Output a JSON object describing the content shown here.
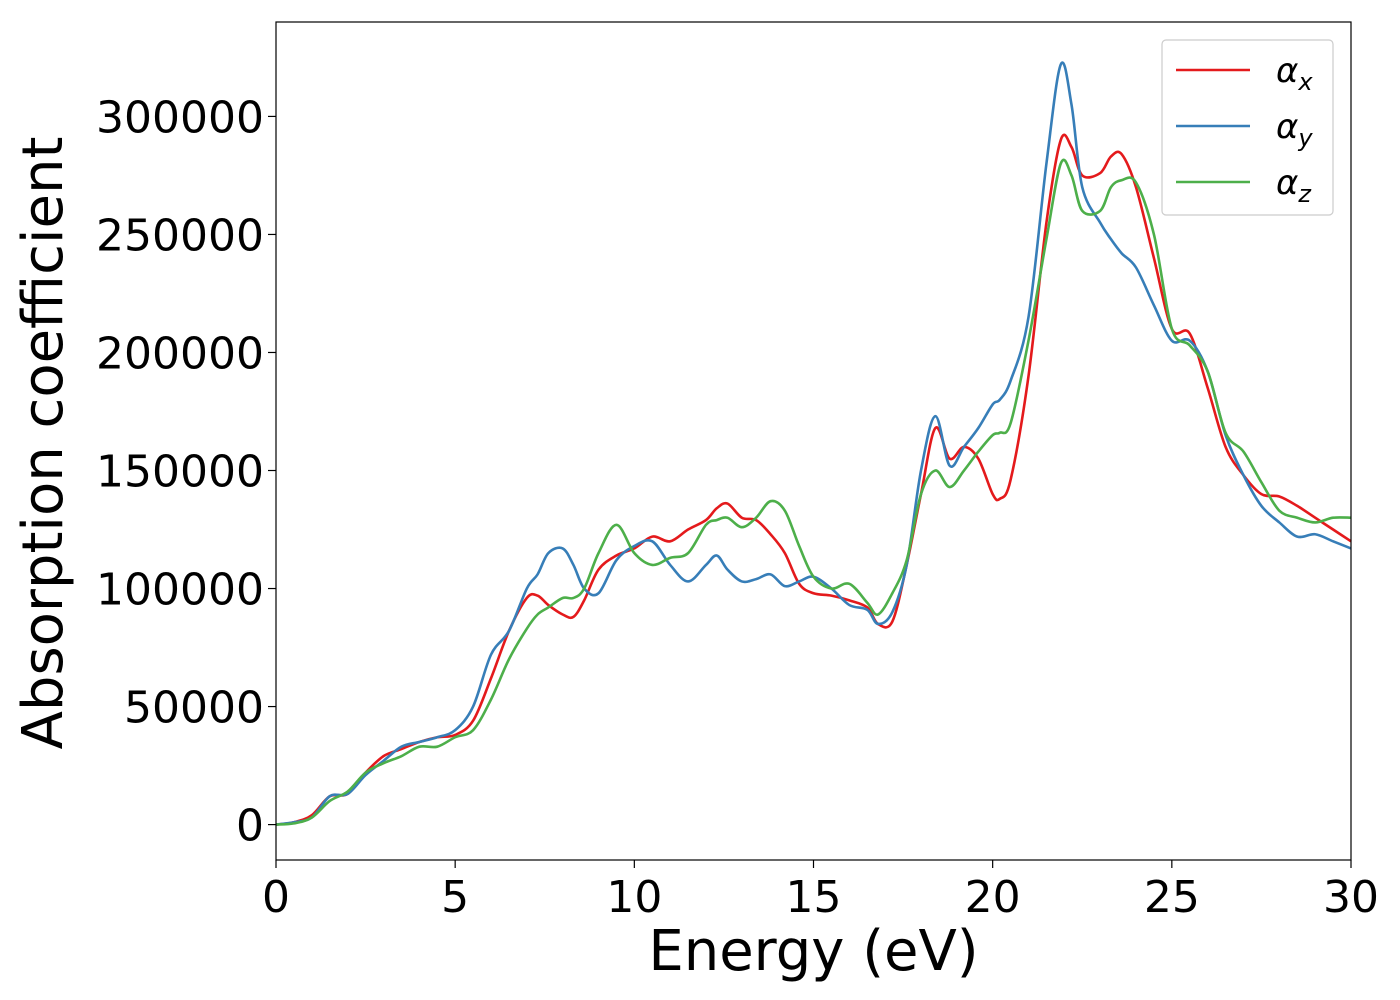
{
  "chart_data": {
    "type": "line",
    "xlabel": "Energy (eV)",
    "ylabel": "Absorption coefficient",
    "xlim": [
      0,
      30
    ],
    "ylim": [
      -15000,
      340000
    ],
    "xticks": [
      0,
      5,
      10,
      15,
      20,
      25,
      30
    ],
    "xtick_labels": [
      "0",
      "5",
      "10",
      "15",
      "20",
      "25",
      "30"
    ],
    "yticks": [
      0,
      50000,
      100000,
      150000,
      200000,
      250000,
      300000
    ],
    "ytick_labels": [
      "0",
      "50000",
      "100000",
      "150000",
      "200000",
      "250000",
      "300000"
    ],
    "grid": false,
    "legend_position": "top-right",
    "series": [
      {
        "name": "α_x",
        "legend_symbol": "α",
        "legend_sub": "x",
        "color": "#e41a1c",
        "x": [
          0,
          0.5,
          1,
          1.5,
          2,
          2.5,
          3,
          3.5,
          4,
          4.5,
          5,
          5.5,
          6,
          6.5,
          7,
          7.3,
          7.6,
          8,
          8.3,
          8.6,
          9,
          9.5,
          10,
          10.5,
          11,
          11.5,
          12,
          12.3,
          12.6,
          13,
          13.4,
          13.8,
          14.2,
          14.6,
          15,
          15.5,
          16,
          16.5,
          16.8,
          17.2,
          17.6,
          18,
          18.4,
          18.8,
          19.2,
          19.6,
          20,
          20.2,
          20.5,
          21,
          21.5,
          21.9,
          22.2,
          22.5,
          23,
          23.3,
          23.6,
          24,
          24.5,
          25,
          25.5,
          26,
          26.5,
          27,
          27.5,
          28,
          28.5,
          29,
          29.5,
          30
        ],
        "y": [
          0,
          1000,
          4000,
          12000,
          13000,
          22000,
          29000,
          32000,
          35000,
          37000,
          38000,
          44000,
          62000,
          82000,
          96000,
          97000,
          93000,
          89000,
          88000,
          95000,
          108000,
          114000,
          117000,
          122000,
          120000,
          125000,
          129000,
          134000,
          136000,
          130000,
          129000,
          123000,
          115000,
          102000,
          98000,
          97000,
          95000,
          92000,
          85000,
          86000,
          110000,
          140000,
          168000,
          155000,
          160000,
          155000,
          140000,
          138000,
          146000,
          190000,
          255000,
          290000,
          287000,
          275000,
          276000,
          283000,
          284000,
          270000,
          240000,
          210000,
          208000,
          185000,
          160000,
          148000,
          140000,
          139000,
          135000,
          130000,
          125000,
          120000
        ]
      },
      {
        "name": "α_y",
        "legend_symbol": "α",
        "legend_sub": "y",
        "color": "#377eb8",
        "x": [
          0,
          0.5,
          1,
          1.5,
          2,
          2.5,
          3,
          3.5,
          4,
          4.5,
          5,
          5.5,
          6,
          6.5,
          7,
          7.3,
          7.6,
          8,
          8.3,
          8.6,
          9,
          9.5,
          10,
          10.5,
          11,
          11.5,
          12,
          12.3,
          12.6,
          13,
          13.4,
          13.8,
          14.2,
          14.6,
          15,
          15.5,
          16,
          16.5,
          16.8,
          17.2,
          17.6,
          18,
          18.4,
          18.8,
          19.2,
          19.6,
          20,
          20.2,
          20.5,
          21,
          21.5,
          21.9,
          22.2,
          22.5,
          23,
          23.3,
          23.6,
          24,
          24.5,
          25,
          25.5,
          26,
          26.5,
          27,
          27.5,
          28,
          28.5,
          29,
          29.5,
          30
        ],
        "y": [
          0,
          1000,
          3000,
          12000,
          13000,
          21000,
          27000,
          33000,
          35000,
          37000,
          40000,
          50000,
          72000,
          82000,
          100000,
          106000,
          115000,
          117000,
          110000,
          100000,
          98000,
          112000,
          118000,
          120000,
          110000,
          103000,
          110000,
          114000,
          108000,
          103000,
          104000,
          106000,
          101000,
          103000,
          105000,
          100000,
          93000,
          91000,
          85000,
          90000,
          110000,
          150000,
          173000,
          152000,
          160000,
          168000,
          178000,
          180000,
          188000,
          215000,
          280000,
          322000,
          305000,
          270000,
          255000,
          248000,
          242000,
          236000,
          220000,
          205000,
          205000,
          192000,
          165000,
          148000,
          135000,
          128000,
          122000,
          123000,
          120000,
          117000
        ]
      },
      {
        "name": "α_z",
        "legend_symbol": "α",
        "legend_sub": "z",
        "color": "#4daf4a",
        "x": [
          0,
          0.5,
          1,
          1.5,
          2,
          2.5,
          3,
          3.5,
          4,
          4.5,
          5,
          5.5,
          6,
          6.5,
          7,
          7.3,
          7.6,
          8,
          8.3,
          8.6,
          9,
          9.5,
          10,
          10.5,
          11,
          11.5,
          12,
          12.3,
          12.6,
          13,
          13.4,
          13.8,
          14.2,
          14.6,
          15,
          15.5,
          16,
          16.5,
          16.8,
          17.2,
          17.6,
          18,
          18.4,
          18.8,
          19.2,
          19.6,
          20,
          20.2,
          20.5,
          21,
          21.5,
          21.9,
          22.2,
          22.5,
          23,
          23.3,
          23.6,
          24,
          24.5,
          25,
          25.5,
          26,
          26.5,
          27,
          27.5,
          28,
          28.5,
          29,
          29.5,
          30
        ],
        "y": [
          0,
          500,
          3000,
          10000,
          14000,
          22000,
          26000,
          29000,
          33000,
          33000,
          37000,
          40000,
          53000,
          70000,
          83000,
          89000,
          92000,
          96000,
          96000,
          100000,
          115000,
          127000,
          115000,
          110000,
          113000,
          115000,
          127000,
          129000,
          130000,
          126000,
          130000,
          137000,
          133000,
          118000,
          105000,
          100000,
          102000,
          94000,
          89000,
          98000,
          112000,
          140000,
          150000,
          143000,
          150000,
          158000,
          165000,
          166000,
          170000,
          205000,
          248000,
          280000,
          275000,
          260000,
          260000,
          270000,
          273000,
          272000,
          250000,
          210000,
          203000,
          192000,
          166000,
          158000,
          145000,
          133000,
          130000,
          128000,
          130000,
          130000
        ]
      }
    ]
  }
}
